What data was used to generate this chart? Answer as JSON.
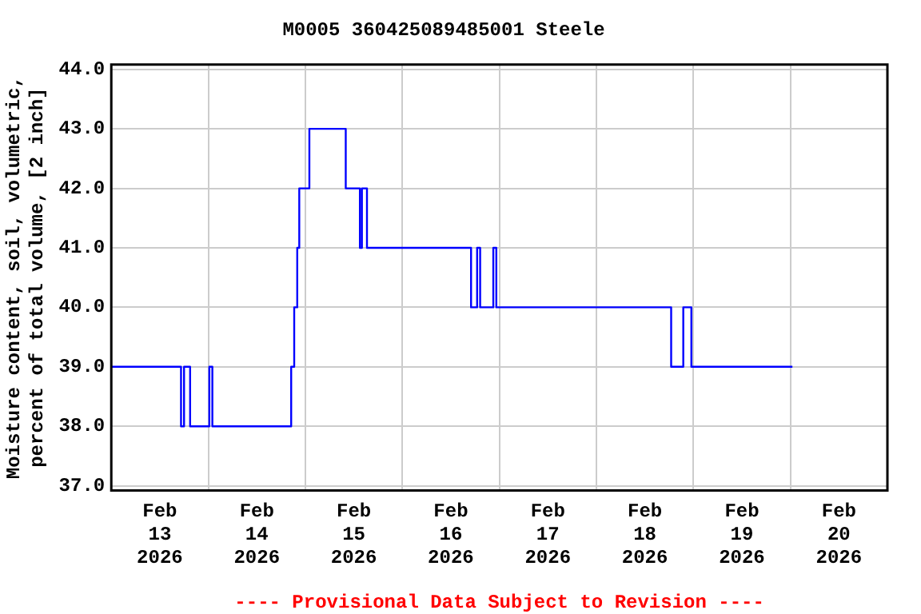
{
  "chart_data": {
    "type": "step",
    "title": "M0005 360425089485001 Steele",
    "ylabel": "Moisture content, soil, volumetric, percent of total volume, [2 inch]",
    "annotations": [
      "---- Provisional Data Subject to Revision ----"
    ],
    "x": [
      "2026-02-13T00:00",
      "2026-02-13T17:15",
      "2026-02-13T18:00",
      "2026-02-13T19:30",
      "2026-02-14T00:15",
      "2026-02-14T01:00",
      "2026-02-14T20:30",
      "2026-02-14T21:15",
      "2026-02-14T22:00",
      "2026-02-14T22:30",
      "2026-02-15T01:00",
      "2026-02-15T10:00",
      "2026-02-15T13:30",
      "2026-02-15T14:00",
      "2026-02-15T15:15",
      "2026-02-16T17:00",
      "2026-02-16T18:30",
      "2026-02-16T19:15",
      "2026-02-16T22:30",
      "2026-02-16T23:15",
      "2026-02-18T18:30",
      "2026-02-18T21:30",
      "2026-02-18T23:30",
      "2026-02-20T00:30"
    ],
    "series": [
      {
        "color": "#0000ff",
        "values": [
          39,
          38,
          39,
          38,
          39,
          38,
          39,
          40,
          41,
          42,
          43,
          42,
          41,
          42,
          41,
          40,
          41,
          40,
          41,
          40,
          39,
          40,
          39,
          39
        ]
      }
    ],
    "xlim": [
      "2026-02-13T00:00",
      "2026-02-21T00:00"
    ],
    "xticks": [
      {
        "value": "2026-02-13T12:00",
        "label": "Feb 13 2026"
      },
      {
        "value": "2026-02-14T00:00",
        "label": null
      },
      {
        "value": "2026-02-14T12:00",
        "label": "Feb 14 2026"
      },
      {
        "value": "2026-02-15T00:00",
        "label": null
      },
      {
        "value": "2026-02-15T12:00",
        "label": "Feb 15 2026"
      },
      {
        "value": "2026-02-16T00:00",
        "label": null
      },
      {
        "value": "2026-02-16T12:00",
        "label": "Feb 16 2026"
      },
      {
        "value": "2026-02-17T00:00",
        "label": null
      },
      {
        "value": "2026-02-17T12:00",
        "label": "Feb 17 2026"
      },
      {
        "value": "2026-02-18T00:00",
        "label": null
      },
      {
        "value": "2026-02-18T12:00",
        "label": "Feb 18 2026"
      },
      {
        "value": "2026-02-19T00:00",
        "label": null
      },
      {
        "value": "2026-02-19T12:00",
        "label": "Feb 19 2026"
      },
      {
        "value": "2026-02-20T00:00",
        "label": null
      },
      {
        "value": "2026-02-20T12:00",
        "label": "Feb 20 2026"
      }
    ],
    "ylim": [
      36.92,
      44.08
    ],
    "yticks": [
      {
        "value": 37,
        "label": "37.0"
      },
      {
        "value": 38,
        "label": "38.0"
      },
      {
        "value": 39,
        "label": "39.0"
      },
      {
        "value": 40,
        "label": "40.0"
      },
      {
        "value": 41,
        "label": "41.0"
      },
      {
        "value": 42,
        "label": "42.0"
      },
      {
        "value": 43,
        "label": "43.0"
      },
      {
        "value": 44,
        "label": "44.0"
      }
    ],
    "grid": true,
    "legend": false,
    "marker": "none",
    "line_style": "solid"
  }
}
